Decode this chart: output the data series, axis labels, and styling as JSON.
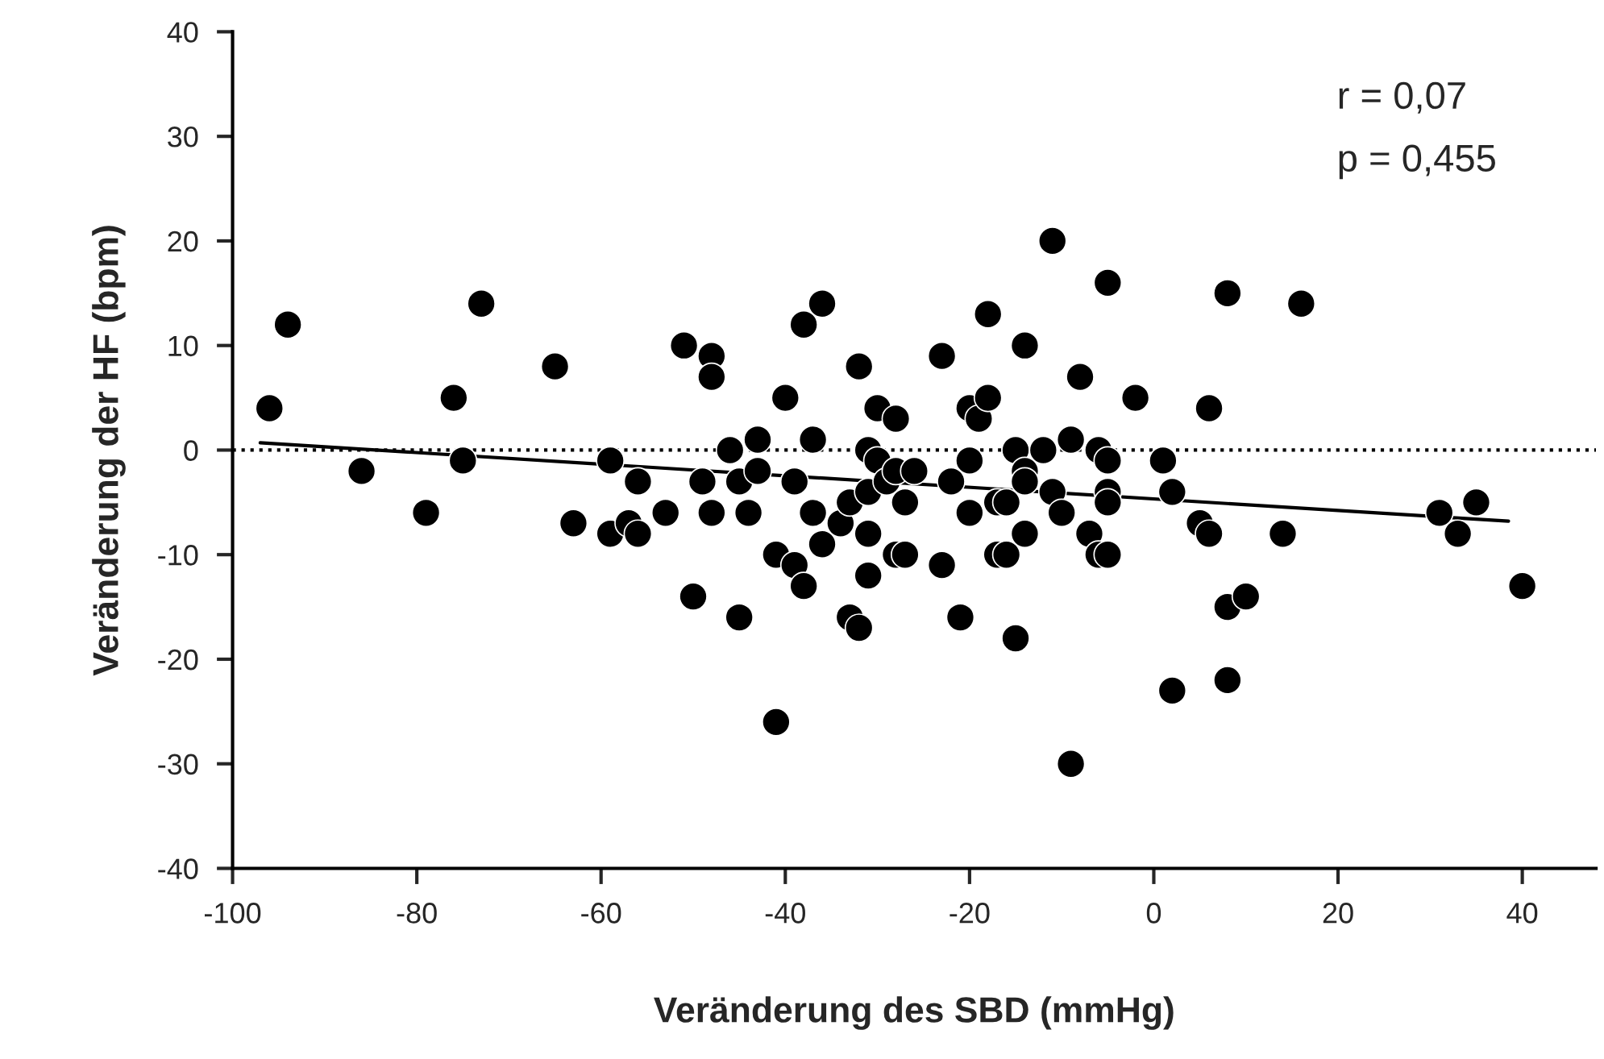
{
  "chart_data": {
    "type": "scatter",
    "xlabel": "Veränderung des SBD (mmHg)",
    "ylabel": "Veränderung der HF (bpm)",
    "xlim": [
      -100,
      48
    ],
    "ylim": [
      -40,
      40
    ],
    "xticks": [
      -100,
      -80,
      -60,
      -40,
      -20,
      0,
      20,
      40
    ],
    "yticks": [
      -40,
      -30,
      -20,
      -10,
      0,
      10,
      20,
      30,
      40
    ],
    "grid": false,
    "legend": false,
    "marker": "circle",
    "annotations": [
      "r = 0,07",
      "p = 0,455"
    ],
    "ref_lines": [
      {
        "axis": "y",
        "value": 0,
        "label": null,
        "color": "#000000",
        "line_style": "dotted"
      }
    ],
    "series": [
      {
        "color": "#000000",
        "x": [
          -96,
          -94,
          -86,
          -79,
          -76,
          -75,
          -73,
          -65,
          -63,
          -59,
          -59,
          -57,
          -56,
          -56,
          -53,
          -51,
          -50,
          -49,
          -48,
          -48,
          -48,
          -46,
          -45,
          -45,
          -44,
          -43,
          -43,
          -41,
          -41,
          -40,
          -39,
          -39,
          -38,
          -38,
          -37,
          -37,
          -36,
          -36,
          -34,
          -33,
          -33,
          -32,
          -32,
          -31,
          -31,
          -31,
          -31,
          -30,
          -30,
          -29,
          -28,
          -28,
          -28,
          -27,
          -27,
          -26,
          -23,
          -23,
          -22,
          -21,
          -20,
          -20,
          -20,
          -19,
          -18,
          -18,
          -17,
          -17,
          -16,
          -16,
          -15,
          -15,
          -14,
          -14,
          -14,
          -14,
          -12,
          -11,
          -11,
          -10,
          -9,
          -9,
          -8,
          -7,
          -6,
          -6,
          -5,
          -5,
          -5,
          -5,
          -5,
          -2,
          1,
          2,
          2,
          5,
          6,
          6,
          8,
          8,
          8,
          10,
          14,
          16,
          31,
          33,
          35,
          40
        ],
        "values": [
          4,
          12,
          -2,
          -6,
          5,
          -1,
          14,
          8,
          -7,
          -1,
          -8,
          -7,
          -3,
          -8,
          -6,
          10,
          -14,
          -3,
          9,
          7,
          -6,
          0,
          -3,
          -16,
          -6,
          1,
          -2,
          -10,
          -26,
          5,
          -11,
          -3,
          12,
          -13,
          1,
          -6,
          14,
          -9,
          -7,
          -5,
          -16,
          8,
          -17,
          0,
          -4,
          -8,
          -12,
          4,
          -1,
          -3,
          3,
          -2,
          -10,
          -5,
          -10,
          -2,
          9,
          -11,
          -3,
          -16,
          4,
          -1,
          -6,
          3,
          5,
          13,
          -5,
          -10,
          -5,
          -10,
          0,
          -18,
          -2,
          -3,
          10,
          -8,
          0,
          20,
          -4,
          -6,
          1,
          -30,
          7,
          -8,
          0,
          -10,
          16,
          -1,
          -4,
          -5,
          -10,
          5,
          -1,
          -4,
          -23,
          -7,
          4,
          -8,
          15,
          -15,
          -22,
          -14,
          -8,
          14,
          -6,
          -8,
          -5,
          -13
        ]
      },
      {
        "type": "line",
        "color": "#000000",
        "line_style": "solid",
        "marker": "none",
        "x": [
          -97,
          38.5
        ],
        "values": [
          0.7,
          -6.8
        ]
      }
    ]
  }
}
